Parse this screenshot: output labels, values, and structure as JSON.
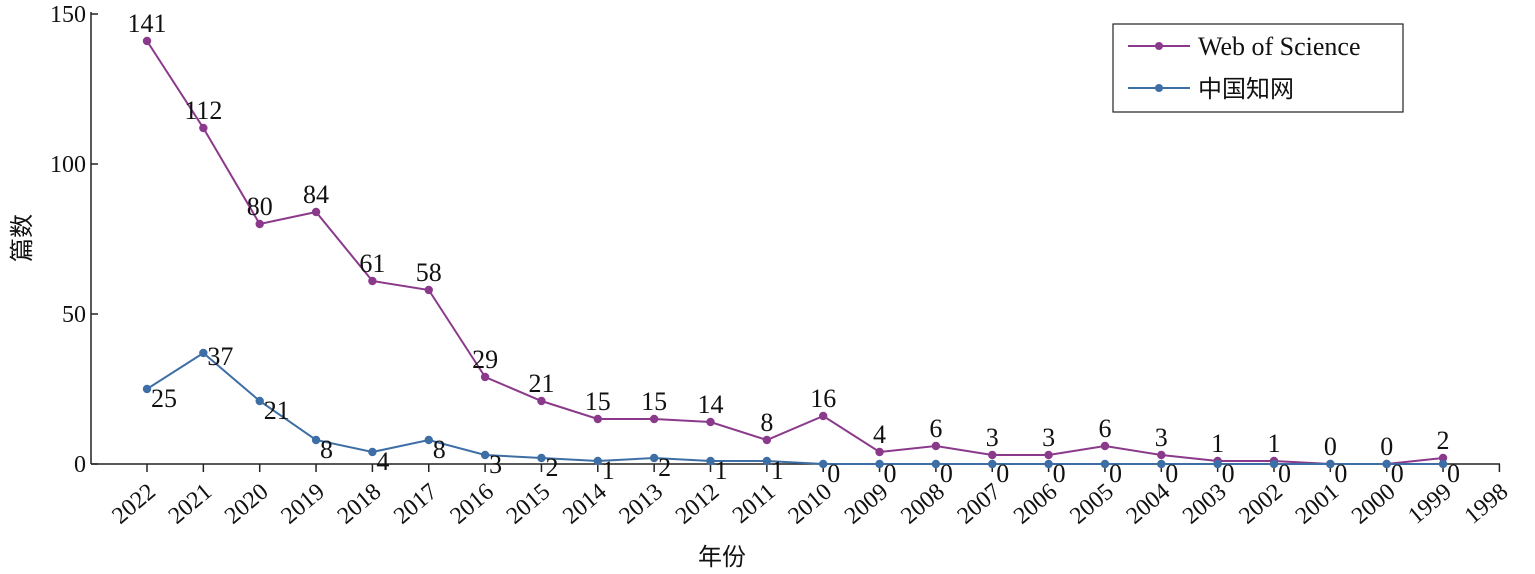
{
  "chart_data": {
    "type": "line",
    "title": "",
    "xlabel": "年份",
    "ylabel": "篇数",
    "ylim": [
      0,
      150
    ],
    "yticks": [
      0,
      50,
      100,
      150
    ],
    "categories": [
      "2022",
      "2021",
      "2020",
      "2019",
      "2018",
      "2017",
      "2016",
      "2015",
      "2014",
      "2013",
      "2012",
      "2011",
      "2010",
      "2009",
      "2008",
      "2007",
      "2006",
      "2005",
      "2004",
      "2003",
      "2002",
      "2001",
      "2000",
      "1999",
      "1998"
    ],
    "series": [
      {
        "name": "Web of Science",
        "color": "#8b3a8b",
        "values": [
          141,
          112,
          80,
          84,
          61,
          58,
          29,
          21,
          15,
          15,
          14,
          8,
          16,
          4,
          6,
          3,
          3,
          6,
          3,
          1,
          1,
          0,
          0,
          2,
          null
        ]
      },
      {
        "name": "中国知网",
        "color": "#3d6ea5",
        "values": [
          25,
          37,
          21,
          8,
          4,
          8,
          3,
          2,
          1,
          2,
          1,
          1,
          0,
          0,
          0,
          0,
          0,
          0,
          0,
          0,
          0,
          0,
          0,
          0,
          null
        ]
      }
    ],
    "legend": "top-right",
    "grid": false
  }
}
